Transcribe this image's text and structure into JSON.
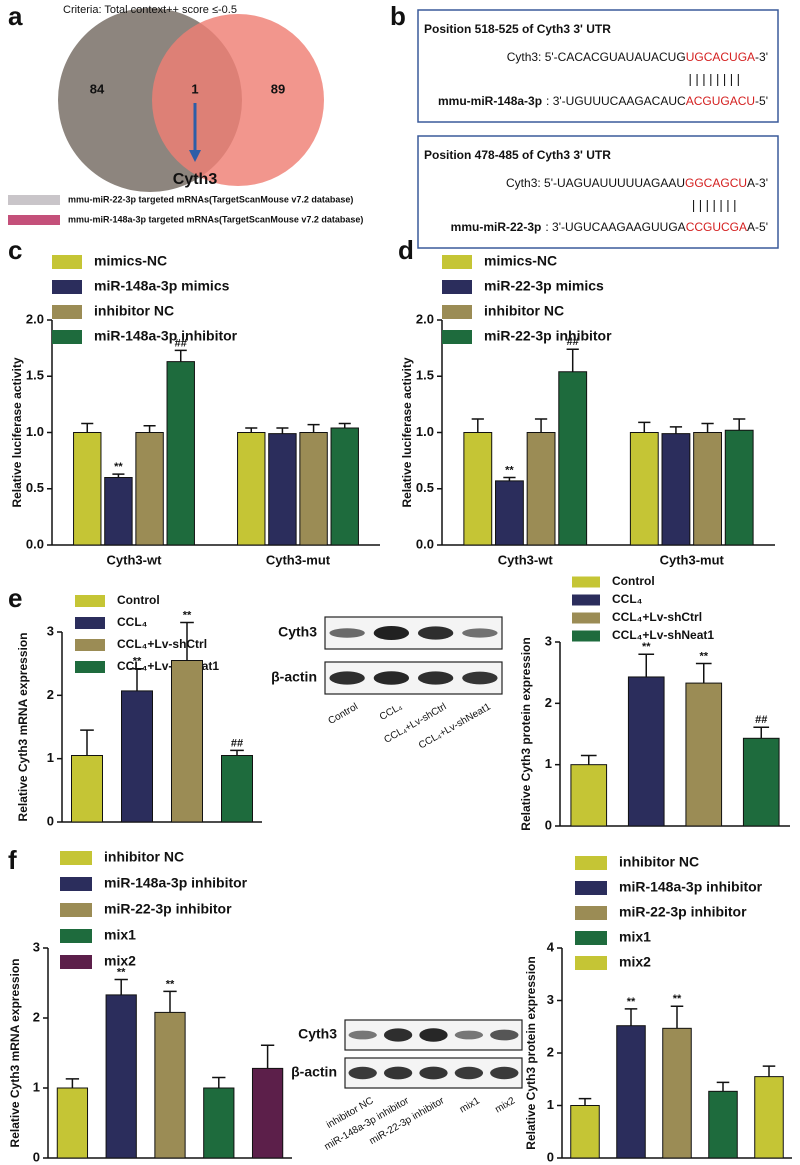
{
  "panel_labels": [
    "a",
    "b",
    "c",
    "d",
    "e",
    "f"
  ],
  "venn": {
    "criteria": "Criteria: Total context++ score ≤-0.5",
    "left_count": 84,
    "overlap_count": 1,
    "right_count": 89,
    "overlap_gene": "Cyth3",
    "legend": [
      {
        "label": "mmu-miR-22-3p targeted mRNAs(TargetScanMouse v7.2 database)",
        "color": "#c9c5c9"
      },
      {
        "label": "mmu-miR-148a-3p targeted mRNAs(TargetScanMouse v7.2 database)",
        "color": "#c4507a"
      }
    ]
  },
  "sequences": [
    {
      "title": "Position 518-525 of Cyth3 3' UTR",
      "target": {
        "prefix": "Cyth3: 5'-CACACGUAUAUACUG",
        "seed": "UGCACUGA",
        "suffix": "-3'"
      },
      "pairing": "||||||||",
      "mirna": {
        "name": "mmu-miR-148a-3p",
        "prefix": ": 3'-UGUUUCAAGACAUC",
        "seed": "ACGUGACU",
        "suffix": "-5'"
      }
    },
    {
      "title": "Position 478-485 of Cyth3 3' UTR",
      "target": {
        "prefix": "Cyth3: 5'-UAGUAUUUUUAGAAU",
        "seed": "GGCAGCU",
        "suffix": "A-3'"
      },
      "pairing": "|||||||",
      "mirna": {
        "name": "mmu-miR-22-3p",
        "prefix": ": 3'-UGUCAAGAAGUUGA",
        "seed": "CCGUCGA",
        "suffix": "A-5'"
      }
    }
  ],
  "blots": [
    {
      "rows": [
        "Cyth3",
        "β-actin"
      ],
      "lanes": [
        "Control",
        "CCL₄",
        "CCL₄+Lv-shCtrl",
        "CCL₄+Lv-shNeat1"
      ]
    },
    {
      "rows": [
        "Cyth3",
        "β-actin"
      ],
      "lanes": [
        "inhibitor NC",
        "miR-148a-3p inhibitor",
        "miR-22-3p inhibitor",
        "mix1",
        "mix2"
      ]
    }
  ],
  "chart_data": [
    {
      "type": "bar",
      "ylabel": "Relative luciferase activity",
      "categories": [
        "Cyth3-wt",
        "Cyth3-mut"
      ],
      "ylim": [
        0,
        2
      ],
      "yticks": [
        {
          "value": 0,
          "label": "0.0"
        },
        0.5,
        {
          "value": 1,
          "label": "1.0"
        },
        1.5,
        {
          "value": 2,
          "label": "2.0"
        }
      ],
      "series": [
        {
          "name": "mimics-NC",
          "color": "#c5c535",
          "values": [
            1.0,
            1.0
          ],
          "errors": [
            0.08,
            0.04
          ],
          "significance": [
            null,
            null
          ]
        },
        {
          "name": "miR-148a-3p mimics",
          "color": "#2b2d5c",
          "values": [
            0.6,
            0.99
          ],
          "errors": [
            0.03,
            0.05
          ],
          "significance": [
            "**",
            null
          ]
        },
        {
          "name": "inhibitor NC",
          "color": "#9b8c55",
          "values": [
            1.0,
            1.0
          ],
          "errors": [
            0.06,
            0.07
          ],
          "significance": [
            null,
            null
          ]
        },
        {
          "name": "miR-148a-3p inhibitor",
          "color": "#1e6b3d",
          "values": [
            1.63,
            1.04
          ],
          "errors": [
            0.1,
            0.04
          ],
          "significance": [
            "##",
            null
          ]
        }
      ]
    },
    {
      "type": "bar",
      "ylabel": "Relative luciferase activity",
      "categories": [
        "Cyth3-wt",
        "Cyth3-mut"
      ],
      "ylim": [
        0,
        2
      ],
      "yticks": [
        {
          "value": 0,
          "label": "0.0"
        },
        0.5,
        {
          "value": 1,
          "label": "1.0"
        },
        1.5,
        {
          "value": 2,
          "label": "2.0"
        }
      ],
      "series": [
        {
          "name": "mimics-NC",
          "color": "#c5c535",
          "values": [
            1.0,
            1.0
          ],
          "errors": [
            0.12,
            0.09
          ],
          "significance": [
            null,
            null
          ]
        },
        {
          "name": "miR-22-3p mimics",
          "color": "#2b2d5c",
          "values": [
            0.57,
            0.99
          ],
          "errors": [
            0.03,
            0.06
          ],
          "significance": [
            "**",
            null
          ]
        },
        {
          "name": "inhibitor NC",
          "color": "#9b8c55",
          "values": [
            1.0,
            1.0
          ],
          "errors": [
            0.12,
            0.08
          ],
          "significance": [
            null,
            null
          ]
        },
        {
          "name": "miR-22-3p inhibitor",
          "color": "#1e6b3d",
          "values": [
            1.54,
            1.02
          ],
          "errors": [
            0.2,
            0.1
          ],
          "significance": [
            "##",
            null
          ]
        }
      ]
    },
    {
      "type": "bar",
      "ylabel": "Relative Cyth3 mRNA expression",
      "categories": [
        null
      ],
      "ylim": [
        0,
        3
      ],
      "yticks": [
        0,
        1,
        2,
        3
      ],
      "series": [
        {
          "name": "Control",
          "color": "#c5c535",
          "values": [
            1.05
          ],
          "errors": [
            0.4
          ],
          "significance": [
            null
          ]
        },
        {
          "name": "CCL₄",
          "color": "#2b2d5c",
          "values": [
            2.07
          ],
          "errors": [
            0.35
          ],
          "significance": [
            "**"
          ]
        },
        {
          "name": "CCL₄+Lv-shCtrl",
          "color": "#9b8c55",
          "values": [
            2.55
          ],
          "errors": [
            0.6
          ],
          "significance": [
            "**"
          ]
        },
        {
          "name": "CCL₄+Lv-shNeat1",
          "color": "#1e6b3d",
          "values": [
            1.05
          ],
          "errors": [
            0.08
          ],
          "significance": [
            "##"
          ]
        }
      ]
    },
    {
      "type": "bar",
      "ylabel": "Relative Cyth3 protein expression",
      "categories": [
        null
      ],
      "ylim": [
        0,
        3
      ],
      "yticks": [
        0,
        1,
        2,
        3
      ],
      "series": [
        {
          "name": "Control",
          "color": "#c5c535",
          "values": [
            1.0
          ],
          "errors": [
            0.15
          ],
          "significance": [
            null
          ]
        },
        {
          "name": "CCL₄",
          "color": "#2b2d5c",
          "values": [
            2.43
          ],
          "errors": [
            0.37
          ],
          "significance": [
            "**"
          ]
        },
        {
          "name": "CCL₄+Lv-shCtrl",
          "color": "#9b8c55",
          "values": [
            2.33
          ],
          "errors": [
            0.32
          ],
          "significance": [
            "**"
          ]
        },
        {
          "name": "CCL₄+Lv-shNeat1",
          "color": "#1e6b3d",
          "values": [
            1.43
          ],
          "errors": [
            0.18
          ],
          "significance": [
            "##"
          ]
        }
      ]
    },
    {
      "type": "bar",
      "ylabel": "Relative Cyth3 mRNA expression",
      "categories": [
        null
      ],
      "ylim": [
        0,
        3
      ],
      "yticks": [
        0,
        1,
        2,
        3
      ],
      "series": [
        {
          "name": "inhibitor NC",
          "color": "#c5c535",
          "values": [
            1.0
          ],
          "errors": [
            0.13
          ],
          "significance": [
            null
          ]
        },
        {
          "name": "miR-148a-3p inhibitor",
          "color": "#2b2d5c",
          "values": [
            2.33
          ],
          "errors": [
            0.22
          ],
          "significance": [
            "**"
          ]
        },
        {
          "name": "miR-22-3p inhibitor",
          "color": "#9b8c55",
          "values": [
            2.08
          ],
          "errors": [
            0.3
          ],
          "significance": [
            "**"
          ]
        },
        {
          "name": "mix1",
          "color": "#1e6b3d",
          "values": [
            1.0
          ],
          "errors": [
            0.15
          ],
          "significance": [
            null
          ]
        },
        {
          "name": "mix2",
          "color": "#5c1f4a",
          "values": [
            1.28
          ],
          "errors": [
            0.33
          ],
          "significance": [
            null
          ]
        }
      ]
    },
    {
      "type": "bar",
      "ylabel": "Relative Cyth3 protein expression",
      "categories": [
        null
      ],
      "ylim": [
        0,
        4
      ],
      "yticks": [
        0,
        1,
        2,
        3,
        4
      ],
      "series": [
        {
          "name": "inhibitor NC",
          "color": "#c5c535",
          "values": [
            1.0
          ],
          "errors": [
            0.13
          ],
          "significance": [
            null
          ]
        },
        {
          "name": "miR-148a-3p inhibitor",
          "color": "#2b2d5c",
          "values": [
            2.52
          ],
          "errors": [
            0.32
          ],
          "significance": [
            "**"
          ]
        },
        {
          "name": "miR-22-3p inhibitor",
          "color": "#9b8c55",
          "values": [
            2.47
          ],
          "errors": [
            0.42
          ],
          "significance": [
            "**"
          ]
        },
        {
          "name": "mix1",
          "color": "#1e6b3d",
          "values": [
            1.27
          ],
          "errors": [
            0.17
          ],
          "significance": [
            null
          ]
        },
        {
          "name": "mix2",
          "color": "#c5c535",
          "values": [
            1.55
          ],
          "errors": [
            0.2
          ],
          "significance": [
            null
          ]
        }
      ]
    }
  ]
}
